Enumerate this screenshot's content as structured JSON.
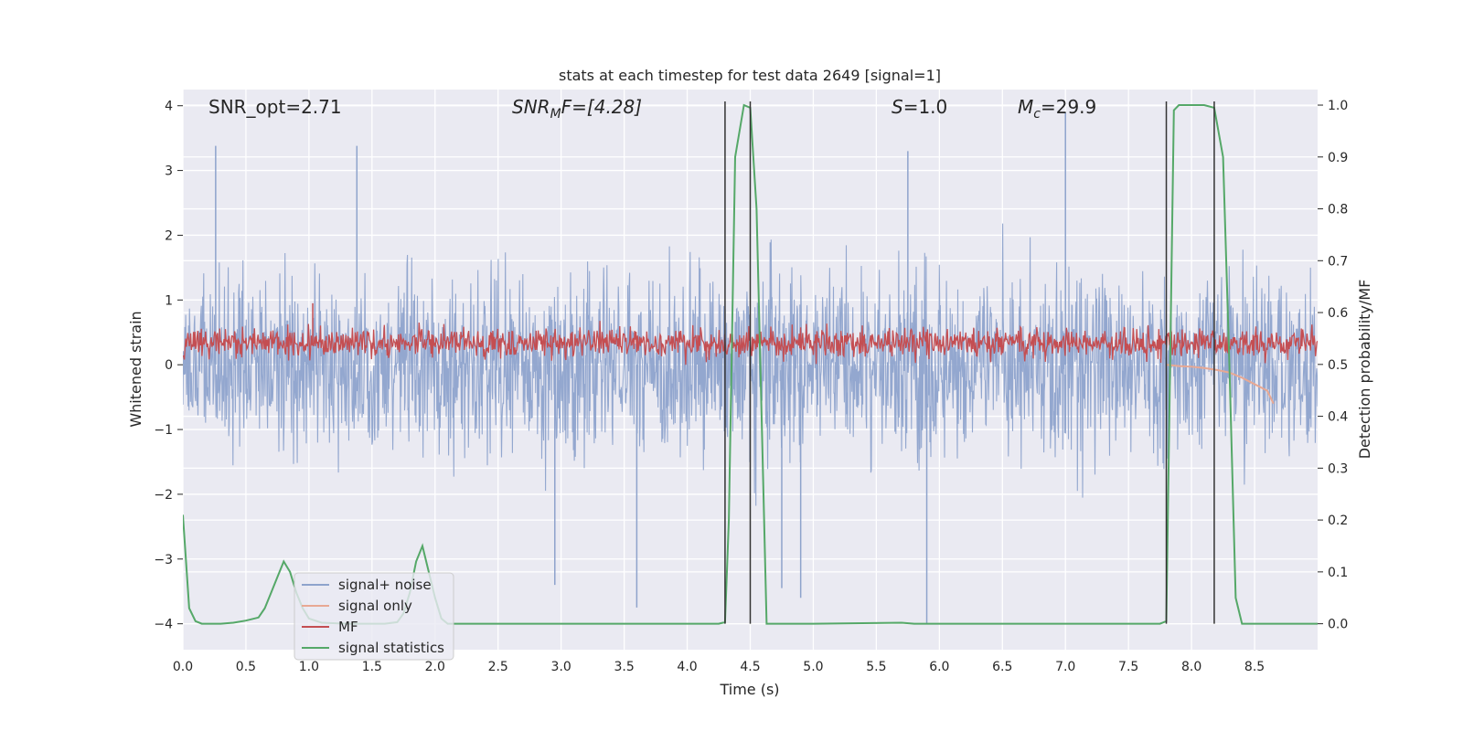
{
  "chart_data": {
    "type": "line",
    "title": "stats at each timestep for test data 2649 [signal=1]",
    "xlabel": "Time (s)",
    "ylabel_left": "Whitened strain",
    "ylabel_right": "Detection probability/MF",
    "xlim": [
      0.0,
      9.0
    ],
    "ylim_left": [
      -4.4,
      4.25
    ],
    "ylim_right": [
      -0.05,
      1.03
    ],
    "x_ticks": [
      "0.0",
      "0.5",
      "1.0",
      "1.5",
      "2.0",
      "2.5",
      "3.0",
      "3.5",
      "4.0",
      "4.5",
      "5.0",
      "5.5",
      "6.0",
      "6.5",
      "7.0",
      "7.5",
      "8.0",
      "8.5"
    ],
    "y_ticks_left": [
      "4",
      "3",
      "2",
      "1",
      "0",
      "−1",
      "−2",
      "−3",
      "−4"
    ],
    "y_ticks_right": [
      "1.0",
      "0.9",
      "0.8",
      "0.7",
      "0.6",
      "0.5",
      "0.4",
      "0.3",
      "0.2",
      "0.1",
      "0.0"
    ],
    "grid": true,
    "legend_placement": "lower-left",
    "annotations": {
      "snr_opt": "SNR_opt=2.71",
      "snr_mf_sym": "SNR",
      "snr_mf_sub": "M",
      "snr_mf_tail": "F=[4.28]",
      "s_sym": "S",
      "s_tail": "=1.0",
      "mc_sym": "M",
      "mc_sub": "c",
      "mc_tail": "=29.9"
    },
    "vertical_lines_x": [
      4.3,
      4.5,
      7.8,
      8.18
    ],
    "series": [
      {
        "name": "signal+ noise",
        "color": "#8ea3cc",
        "axis": "left",
        "description_values": {
          "x_range": [
            0.0,
            9.0
          ],
          "typical_range": [
            -2.0,
            2.0
          ],
          "peaks": [
            [
              0.26,
              3.38
            ],
            [
              1.38,
              3.38
            ],
            [
              5.75,
              3.3
            ],
            [
              7.0,
              3.9
            ],
            [
              5.9,
              -4.0
            ],
            [
              2.95,
              -3.4
            ],
            [
              3.6,
              -3.75
            ],
            [
              4.75,
              -3.45
            ],
            [
              4.9,
              -3.6
            ]
          ]
        }
      },
      {
        "name": "signal only",
        "color": "#e8a893",
        "axis": "left",
        "x": [
          7.8,
          7.9,
          8.0,
          8.1,
          8.2,
          8.3,
          8.4,
          8.5,
          8.6,
          8.65
        ],
        "y": [
          0.0,
          -0.02,
          -0.03,
          -0.05,
          -0.08,
          -0.12,
          -0.2,
          -0.3,
          -0.4,
          -0.6
        ]
      },
      {
        "name": "MF",
        "color": "#c44e52",
        "axis": "left",
        "description_values": {
          "x_range": [
            0.0,
            9.0
          ],
          "typical_range": [
            0.0,
            0.7
          ],
          "max": 0.95
        }
      },
      {
        "name": "signal statistics",
        "color": "#55a868",
        "axis": "right",
        "x": [
          0.0,
          0.05,
          0.1,
          0.15,
          0.2,
          0.3,
          0.4,
          0.5,
          0.6,
          0.65,
          0.7,
          0.75,
          0.8,
          0.85,
          0.9,
          0.95,
          1.0,
          1.1,
          1.3,
          1.5,
          1.6,
          1.7,
          1.75,
          1.8,
          1.85,
          1.9,
          1.95,
          2.0,
          2.05,
          2.1,
          2.2,
          3.0,
          4.0,
          4.25,
          4.3,
          4.33,
          4.38,
          4.45,
          4.5,
          4.55,
          4.6,
          4.63,
          4.7,
          5.0,
          5.7,
          5.8,
          6.0,
          7.0,
          7.75,
          7.8,
          7.83,
          7.86,
          7.9,
          7.95,
          8.0,
          8.1,
          8.18,
          8.25,
          8.3,
          8.35,
          8.4,
          8.5,
          9.0
        ],
        "y": [
          0.21,
          0.03,
          0.005,
          0.0,
          0.0,
          0.0,
          0.002,
          0.006,
          0.012,
          0.03,
          0.06,
          0.09,
          0.12,
          0.1,
          0.06,
          0.03,
          0.01,
          0.002,
          0.0,
          0.0,
          0.0,
          0.003,
          0.02,
          0.06,
          0.12,
          0.15,
          0.1,
          0.05,
          0.01,
          0.0,
          0.0,
          0.0,
          0.0,
          0.0,
          0.003,
          0.2,
          0.9,
          1.0,
          0.995,
          0.8,
          0.3,
          0.0,
          0.0,
          0.0,
          0.002,
          0.0,
          0.0,
          0.0,
          0.0,
          0.005,
          0.5,
          0.99,
          1.0,
          1.0,
          1.0,
          1.0,
          0.995,
          0.9,
          0.5,
          0.05,
          0.0,
          0.0,
          0.0
        ]
      }
    ]
  }
}
